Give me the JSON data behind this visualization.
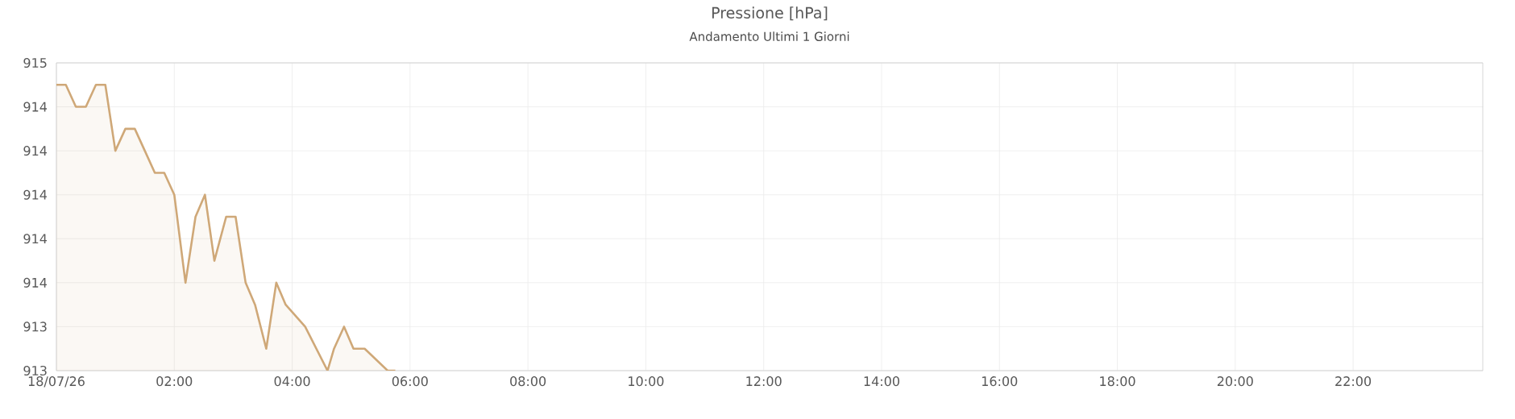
{
  "chart_data": {
    "type": "area",
    "title": "Pressione [hPa]",
    "subtitle": "Andamento Ultimi 1 Giorni",
    "x": [
      0,
      0.16,
      0.33,
      0.5,
      0.67,
      0.83,
      1.0,
      1.17,
      1.33,
      1.5,
      1.67,
      1.83,
      2.0,
      2.19,
      2.36,
      2.52,
      2.68,
      2.88,
      3.04,
      3.21,
      3.37,
      3.56,
      3.73,
      3.89,
      4.22,
      4.6,
      4.71,
      4.88,
      5.04,
      5.23,
      5.62,
      5.75
    ],
    "series": [
      {
        "color": "#cfa878",
        "values": [
          914.5,
          914.5,
          914.4,
          914.4,
          914.5,
          914.5,
          914.2,
          914.3,
          914.3,
          914.2,
          914.1,
          914.1,
          914.0,
          913.6,
          913.9,
          914.0,
          913.7,
          913.9,
          913.9,
          913.6,
          913.5,
          913.3,
          913.6,
          913.5,
          913.4,
          913.2,
          913.3,
          913.4,
          913.3,
          913.3,
          913.2,
          913.2
        ]
      }
    ],
    "xlim": [
      0,
      24.2
    ],
    "xticks": [
      {
        "value": 0,
        "label": "18/07/26"
      },
      {
        "value": 2,
        "label": "02:00"
      },
      {
        "value": 4,
        "label": "04:00"
      },
      {
        "value": 6,
        "label": "06:00"
      },
      {
        "value": 8,
        "label": "08:00"
      },
      {
        "value": 10,
        "label": "10:00"
      },
      {
        "value": 12,
        "label": "12:00"
      },
      {
        "value": 14,
        "label": "14:00"
      },
      {
        "value": 16,
        "label": "16:00"
      },
      {
        "value": 18,
        "label": "18:00"
      },
      {
        "value": 20,
        "label": "20:00"
      },
      {
        "value": 22,
        "label": "22:00"
      }
    ],
    "ylim": [
      913.2,
      914.6
    ],
    "yticks": [
      {
        "value": 913.2,
        "label": "913"
      },
      {
        "value": 913.4,
        "label": "913"
      },
      {
        "value": 913.6,
        "label": "914"
      },
      {
        "value": 913.8,
        "label": "914"
      },
      {
        "value": 914.0,
        "label": "914"
      },
      {
        "value": 914.2,
        "label": "914"
      },
      {
        "value": 914.4,
        "label": "914"
      },
      {
        "value": 914.6,
        "label": "915"
      }
    ],
    "grid": true
  }
}
